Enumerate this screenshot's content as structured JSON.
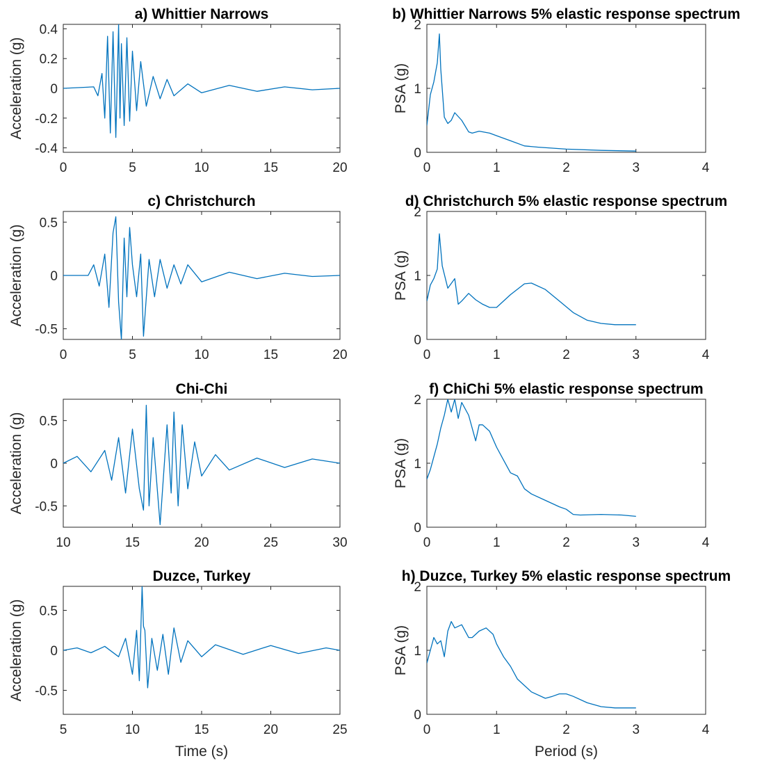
{
  "chart_data": [
    {
      "id": "a",
      "type": "line",
      "title": "a) Whittier Narrows",
      "xlabel": "",
      "ylabel": "Acceleration (g)",
      "xlim": [
        0,
        20
      ],
      "ylim": [
        -0.43,
        0.43
      ],
      "xticks": [
        0,
        5,
        10,
        15,
        20
      ],
      "yticks": [
        -0.4,
        -0.2,
        0,
        0.2,
        0.4
      ],
      "xtick_labels": [
        "0",
        "5",
        "10",
        "15",
        "20"
      ],
      "ytick_labels": [
        "-0.4",
        "-0.2",
        "0",
        "0.2",
        "0.4"
      ],
      "color": "#0072BD",
      "grid": false,
      "series": [
        {
          "x": [
            0,
            2.2,
            2.5,
            2.8,
            3.0,
            3.2,
            3.4,
            3.6,
            3.8,
            4.0,
            4.1,
            4.2,
            4.4,
            4.6,
            4.8,
            5.0,
            5.3,
            5.6,
            6.0,
            6.5,
            7.0,
            7.5,
            8.0,
            9.0,
            10.0,
            12.0,
            14.0,
            16.0,
            18.0,
            20.0
          ],
          "y": [
            0,
            0.01,
            -0.05,
            0.1,
            -0.2,
            0.35,
            -0.3,
            0.38,
            -0.33,
            0.43,
            -0.2,
            0.3,
            -0.25,
            0.34,
            -0.22,
            0.25,
            -0.15,
            0.18,
            -0.12,
            0.08,
            -0.07,
            0.06,
            -0.05,
            0.03,
            -0.03,
            0.02,
            -0.02,
            0.01,
            -0.01,
            0
          ]
        }
      ]
    },
    {
      "id": "b",
      "type": "line",
      "title": "b) Whittier Narrows 5% elastic response spectrum",
      "xlabel": "",
      "ylabel": "PSA (g)",
      "xlim": [
        0,
        4
      ],
      "ylim": [
        0,
        2
      ],
      "xticks": [
        0,
        1,
        2,
        3,
        4
      ],
      "yticks": [
        0,
        1,
        2
      ],
      "xtick_labels": [
        "0",
        "1",
        "2",
        "3",
        "4"
      ],
      "ytick_labels": [
        "0",
        "1",
        "2"
      ],
      "color": "#0072BD",
      "grid": false,
      "series": [
        {
          "x": [
            0,
            0.05,
            0.1,
            0.15,
            0.18,
            0.2,
            0.25,
            0.3,
            0.35,
            0.4,
            0.5,
            0.6,
            0.65,
            0.75,
            0.9,
            1.0,
            1.2,
            1.4,
            1.6,
            2.0,
            2.5,
            3.0
          ],
          "y": [
            0.42,
            0.9,
            1.1,
            1.4,
            1.85,
            1.3,
            0.55,
            0.45,
            0.5,
            0.62,
            0.5,
            0.32,
            0.3,
            0.33,
            0.3,
            0.26,
            0.18,
            0.1,
            0.08,
            0.05,
            0.03,
            0.02
          ]
        }
      ]
    },
    {
      "id": "c",
      "type": "line",
      "title": "c) Christchurch",
      "xlabel": "",
      "ylabel": "Acceleration (g)",
      "xlim": [
        0,
        20
      ],
      "ylim": [
        -0.6,
        0.6
      ],
      "xticks": [
        0,
        5,
        10,
        15,
        20
      ],
      "yticks": [
        -0.5,
        0,
        0.5
      ],
      "xtick_labels": [
        "0",
        "5",
        "10",
        "15",
        "20"
      ],
      "ytick_labels": [
        "-0.5",
        "0",
        "0.5"
      ],
      "color": "#0072BD",
      "grid": false,
      "series": [
        {
          "x": [
            0,
            1.8,
            2.2,
            2.6,
            3.0,
            3.3,
            3.6,
            3.8,
            4.0,
            4.2,
            4.4,
            4.6,
            4.8,
            5.0,
            5.3,
            5.6,
            5.8,
            6.2,
            6.6,
            7.0,
            7.5,
            8.0,
            8.5,
            9.0,
            10.0,
            12.0,
            14.0,
            16.0,
            18.0,
            20.0
          ],
          "y": [
            0,
            0,
            0.1,
            -0.1,
            0.2,
            -0.3,
            0.4,
            0.55,
            -0.25,
            -0.6,
            0.35,
            -0.2,
            0.45,
            0.1,
            -0.2,
            0.2,
            -0.57,
            0.15,
            -0.2,
            0.15,
            -0.12,
            0.1,
            -0.08,
            0.1,
            -0.06,
            0.03,
            -0.03,
            0.02,
            -0.01,
            0
          ]
        }
      ]
    },
    {
      "id": "d",
      "type": "line",
      "title": "d) Christchurch 5% elastic response spectrum",
      "xlabel": "",
      "ylabel": "PSA (g)",
      "xlim": [
        0,
        4
      ],
      "ylim": [
        0,
        2
      ],
      "xticks": [
        0,
        1,
        2,
        3,
        4
      ],
      "yticks": [
        0,
        1,
        2
      ],
      "xtick_labels": [
        "0",
        "1",
        "2",
        "3",
        "4"
      ],
      "ytick_labels": [
        "0",
        "1",
        "2"
      ],
      "color": "#0072BD",
      "grid": false,
      "series": [
        {
          "x": [
            0,
            0.05,
            0.1,
            0.15,
            0.18,
            0.22,
            0.3,
            0.4,
            0.45,
            0.5,
            0.6,
            0.7,
            0.8,
            0.9,
            1.0,
            1.2,
            1.4,
            1.5,
            1.7,
            1.9,
            2.1,
            2.3,
            2.5,
            2.7,
            3.0
          ],
          "y": [
            0.6,
            0.85,
            0.95,
            1.1,
            1.65,
            1.15,
            0.8,
            0.95,
            0.55,
            0.6,
            0.72,
            0.62,
            0.55,
            0.5,
            0.5,
            0.7,
            0.87,
            0.88,
            0.78,
            0.6,
            0.42,
            0.3,
            0.25,
            0.23,
            0.23
          ]
        }
      ]
    },
    {
      "id": "e",
      "type": "line",
      "title": "Chi-Chi",
      "xlabel": "",
      "ylabel": "Acceleration (g)",
      "xlim": [
        10,
        30
      ],
      "ylim": [
        -0.75,
        0.75
      ],
      "xticks": [
        10,
        15,
        20,
        25,
        30
      ],
      "yticks": [
        -0.5,
        0,
        0.5
      ],
      "xtick_labels": [
        "10",
        "15",
        "20",
        "25",
        "30"
      ],
      "ytick_labels": [
        "-0.5",
        "0",
        "0.5"
      ],
      "color": "#0072BD",
      "grid": false,
      "series": [
        {
          "x": [
            10,
            11,
            12,
            13,
            13.5,
            14,
            14.5,
            15,
            15.5,
            15.8,
            16.0,
            16.2,
            16.5,
            17,
            17.5,
            17.8,
            18.0,
            18.3,
            18.6,
            19,
            19.5,
            20,
            21,
            22,
            24,
            26,
            28,
            30
          ],
          "y": [
            0,
            0.08,
            -0.1,
            0.15,
            -0.2,
            0.3,
            -0.35,
            0.4,
            -0.3,
            -0.55,
            0.68,
            -0.5,
            0.3,
            -0.72,
            0.45,
            -0.35,
            0.6,
            -0.5,
            0.45,
            -0.3,
            0.25,
            -0.15,
            0.1,
            -0.08,
            0.06,
            -0.05,
            0.05,
            0
          ]
        }
      ]
    },
    {
      "id": "f",
      "type": "line",
      "title": "f) ChiChi 5% elastic response spectrum",
      "xlabel": "",
      "ylabel": "PSA (g)",
      "xlim": [
        0,
        4
      ],
      "ylim": [
        0,
        2
      ],
      "xticks": [
        0,
        1,
        2,
        3,
        4
      ],
      "yticks": [
        0,
        1,
        2
      ],
      "xtick_labels": [
        "0",
        "1",
        "2",
        "3",
        "4"
      ],
      "ytick_labels": [
        "0",
        "1",
        "2"
      ],
      "color": "#0072BD",
      "grid": false,
      "series": [
        {
          "x": [
            0,
            0.05,
            0.1,
            0.15,
            0.2,
            0.25,
            0.3,
            0.35,
            0.4,
            0.45,
            0.5,
            0.6,
            0.7,
            0.75,
            0.8,
            0.9,
            1.0,
            1.1,
            1.2,
            1.3,
            1.4,
            1.5,
            1.7,
            1.9,
            2.0,
            2.1,
            2.2,
            2.5,
            2.8,
            3.0
          ],
          "y": [
            0.75,
            0.9,
            1.1,
            1.3,
            1.55,
            1.75,
            2.0,
            1.8,
            2.0,
            1.7,
            1.95,
            1.75,
            1.35,
            1.6,
            1.6,
            1.5,
            1.25,
            1.05,
            0.85,
            0.8,
            0.6,
            0.52,
            0.42,
            0.32,
            0.28,
            0.2,
            0.19,
            0.2,
            0.19,
            0.17
          ]
        }
      ]
    },
    {
      "id": "g",
      "type": "line",
      "title": "Duzce, Turkey",
      "xlabel": "Time (s)",
      "ylabel": "Acceleration (g)",
      "xlim": [
        5,
        25
      ],
      "ylim": [
        -0.8,
        0.8
      ],
      "xticks": [
        5,
        10,
        15,
        20,
        25
      ],
      "yticks": [
        -0.5,
        0,
        0.5
      ],
      "xtick_labels": [
        "5",
        "10",
        "15",
        "20",
        "25"
      ],
      "ytick_labels": [
        "-0.5",
        "0",
        "0.5"
      ],
      "color": "#0072BD",
      "grid": false,
      "series": [
        {
          "x": [
            5,
            6,
            7,
            8,
            9,
            9.5,
            10,
            10.3,
            10.5,
            10.7,
            10.8,
            10.9,
            11.1,
            11.4,
            11.8,
            12.2,
            12.6,
            13.0,
            13.5,
            14,
            15,
            16,
            18,
            20,
            22,
            24,
            25
          ],
          "y": [
            0,
            0.03,
            -0.03,
            0.05,
            -0.08,
            0.15,
            -0.3,
            0.25,
            -0.38,
            0.8,
            0.3,
            0.25,
            -0.47,
            0.15,
            -0.25,
            0.2,
            -0.3,
            0.28,
            -0.15,
            0.12,
            -0.08,
            0.07,
            -0.05,
            0.06,
            -0.04,
            0.03,
            0
          ]
        }
      ]
    },
    {
      "id": "h",
      "type": "line",
      "title": "h) Duzce, Turkey 5% elastic response spectrum",
      "xlabel": "Period (s)",
      "ylabel": "PSA (g)",
      "xlim": [
        0,
        4
      ],
      "ylim": [
        0,
        2
      ],
      "xticks": [
        0,
        1,
        2,
        3,
        4
      ],
      "yticks": [
        0,
        1,
        2
      ],
      "xtick_labels": [
        "0",
        "1",
        "2",
        "3",
        "4"
      ],
      "ytick_labels": [
        "0",
        "1",
        "2"
      ],
      "color": "#0072BD",
      "grid": false,
      "series": [
        {
          "x": [
            0,
            0.05,
            0.1,
            0.15,
            0.2,
            0.25,
            0.3,
            0.35,
            0.4,
            0.5,
            0.6,
            0.65,
            0.75,
            0.85,
            0.95,
            1.0,
            1.1,
            1.2,
            1.3,
            1.5,
            1.7,
            1.8,
            1.9,
            2.0,
            2.1,
            2.3,
            2.5,
            2.7,
            3.0
          ],
          "y": [
            0.8,
            1.0,
            1.2,
            1.1,
            1.15,
            0.9,
            1.3,
            1.45,
            1.35,
            1.4,
            1.2,
            1.2,
            1.3,
            1.35,
            1.25,
            1.1,
            0.9,
            0.75,
            0.55,
            0.35,
            0.25,
            0.28,
            0.32,
            0.32,
            0.28,
            0.18,
            0.12,
            0.1,
            0.1
          ]
        }
      ]
    }
  ]
}
